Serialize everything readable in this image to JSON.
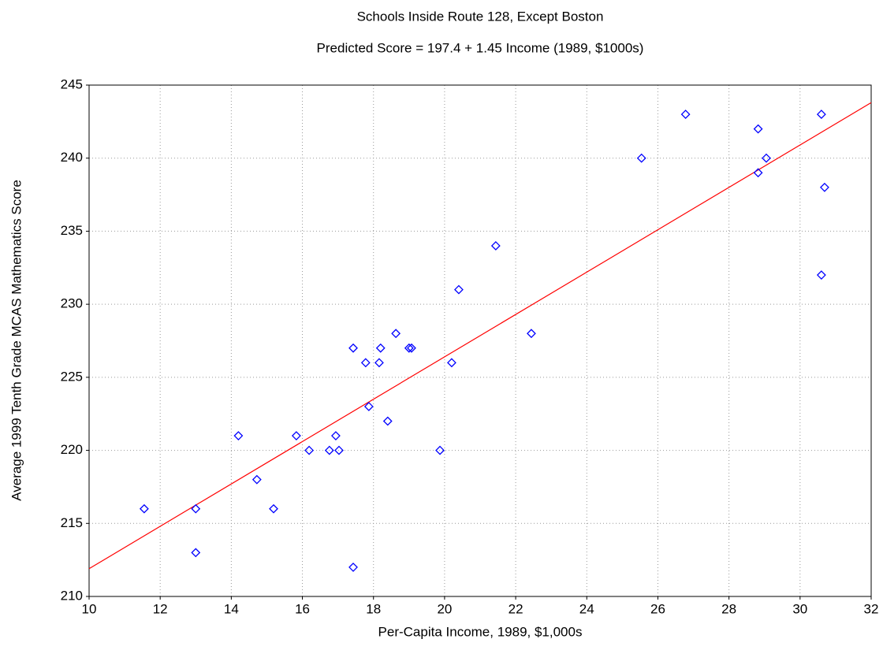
{
  "chart_data": {
    "type": "scatter",
    "title": "Schools Inside Route 128, Except Boston",
    "subtitle": "Predicted Score = 197.4 + 1.45 Income (1989, $1000s)",
    "x_label": "Per-Capita Income, 1989, $1,000s",
    "y_label": "Average 1999 Tenth Grade MCAS Mathematics Score",
    "xlim": [
      10,
      32
    ],
    "xticks": [
      10,
      12,
      14,
      16,
      18,
      20,
      22,
      24,
      26,
      28,
      30,
      32
    ],
    "ylim": [
      210,
      245
    ],
    "yticks": [
      210,
      215,
      220,
      225,
      230,
      235,
      240,
      245
    ],
    "grid": true,
    "series": [
      {
        "color": "#0000ff",
        "x": [
          13.0,
          13.0,
          11.55,
          14.2,
          14.72,
          15.19,
          15.83,
          16.19,
          16.76,
          17.03,
          16.94,
          17.43,
          17.43,
          17.78,
          17.87,
          18.2,
          18.16,
          18.4,
          18.63,
          19.0,
          19.07,
          19.87,
          20.2,
          20.4,
          21.44,
          22.44,
          25.54,
          26.78,
          28.82,
          28.82,
          29.05,
          30.6,
          30.69,
          30.6
        ],
        "values": [
          216,
          213,
          216,
          221,
          218,
          216,
          221,
          220,
          220,
          220,
          221,
          227,
          212,
          226,
          223,
          227,
          226,
          222,
          228,
          227,
          227,
          220,
          226,
          231,
          234,
          228,
          240,
          243,
          242,
          239,
          240,
          243,
          238,
          232
        ]
      }
    ],
    "fit_line": {
      "intercept": 197.4,
      "slope": 1.45,
      "color": "#ff0000"
    }
  }
}
